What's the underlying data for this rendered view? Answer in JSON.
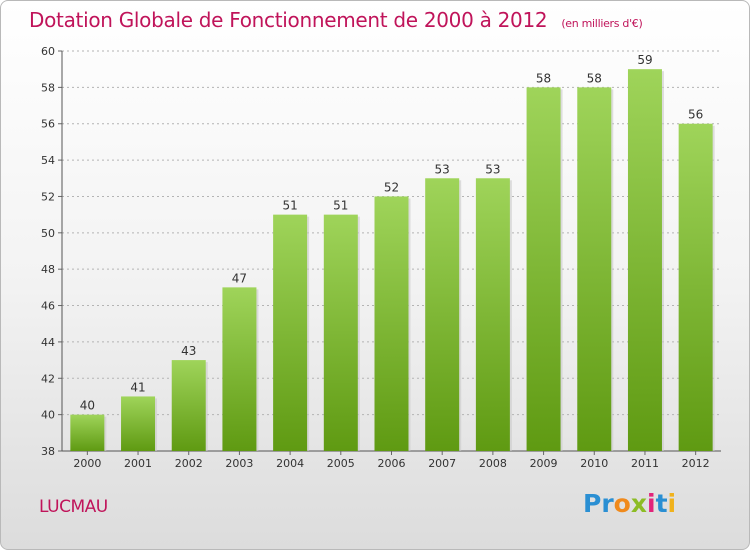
{
  "title": "Dotation Globale de Fonctionnement de 2000 à 2012",
  "unit": "(en milliers d'€)",
  "commune": "LUCMAU",
  "brand": "Proxiti",
  "colors": {
    "title": "#c0145a",
    "bar_top": "#9fd45a",
    "bar_bottom": "#5f9a12",
    "grid": "#b4b4b4"
  },
  "chart_data": {
    "type": "bar",
    "title": "Dotation Globale de Fonctionnement de 2000 à 2012",
    "categories": [
      "2000",
      "2001",
      "2002",
      "2003",
      "2004",
      "2005",
      "2006",
      "2007",
      "2008",
      "2009",
      "2010",
      "2011",
      "2012"
    ],
    "values": [
      40,
      41,
      43,
      47,
      51,
      51,
      52,
      53,
      53,
      58,
      58,
      59,
      56
    ],
    "ylim": [
      38,
      60
    ],
    "yticks": [
      38,
      40,
      42,
      44,
      46,
      48,
      50,
      52,
      54,
      56,
      58,
      60
    ],
    "grid": true,
    "data_labels": true
  }
}
